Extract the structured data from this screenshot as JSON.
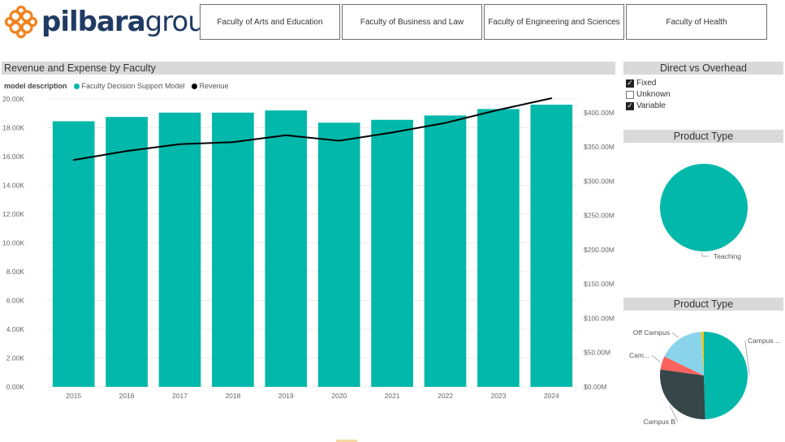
{
  "brand": {
    "name_bold": "pilbara",
    "name_light": "group",
    "colors": {
      "navy": "#1f3b63",
      "orange": "#f0821e"
    }
  },
  "faculties": [
    "Faculty of Arts and Education",
    "Faculty of Business and Law",
    "Faculty of Engineering and Sciences",
    "Faculty of Health"
  ],
  "main": {
    "title": "Revenue and Expense by Faculty",
    "legend": {
      "title": "model description",
      "items": [
        {
          "label": "Faculty Decision Support Model",
          "color": "#01b8aa"
        },
        {
          "label": "Revenue",
          "color": "#000000"
        }
      ]
    }
  },
  "chart_data": [
    {
      "type": "bar",
      "categories": [
        "2015",
        "2016",
        "2017",
        "2018",
        "2019",
        "2020",
        "2021",
        "2022",
        "2023",
        "2024"
      ],
      "series": [
        {
          "name": "Faculty Decision Support Model",
          "axis": "left",
          "kind": "bar",
          "color": "#01b8aa",
          "values": [
            18450,
            18750,
            19050,
            19050,
            19200,
            18350,
            18550,
            18850,
            19300,
            19600
          ]
        },
        {
          "name": "Revenue",
          "axis": "right",
          "kind": "line",
          "color": "#000000",
          "values": [
            331,
            344,
            354,
            357,
            367,
            359,
            371,
            385,
            404,
            421
          ]
        }
      ],
      "yticks_left": [
        "0.00K",
        "2.00K",
        "4.00K",
        "6.00K",
        "8.00K",
        "10.00K",
        "12.00K",
        "14.00K",
        "16.00K",
        "18.00K",
        "20.00K"
      ],
      "yticks_right": [
        "$0.00M",
        "$50.00M",
        "$100.00M",
        "$150.00M",
        "$200.00M",
        "$250.00M",
        "$300.00M",
        "$350.00M",
        "$400.00M"
      ],
      "ylim_left": [
        0,
        20000
      ],
      "ylim_right": [
        0,
        420
      ],
      "grid": true
    },
    {
      "type": "pie",
      "title": "Product Type",
      "labels": [
        "Teaching"
      ],
      "values": [
        100
      ],
      "colors": [
        "#01b8aa"
      ]
    },
    {
      "type": "pie",
      "title": "Product Type",
      "labels": [
        "Campus ...",
        "Campus B",
        "Cam...",
        "Off Campus"
      ],
      "values": [
        50,
        28,
        5,
        17
      ],
      "colors": [
        "#01b8aa",
        "#374649",
        "#fd625e",
        "#8ad4eb"
      ],
      "extra_sliver": {
        "value": 1,
        "color": "#f2c80f"
      }
    }
  ],
  "direct": {
    "title": "Direct vs Overhead",
    "options": [
      {
        "label": "Fixed",
        "checked": true
      },
      {
        "label": "Unknown",
        "checked": false
      },
      {
        "label": "Variable",
        "checked": true
      }
    ]
  },
  "product1": {
    "title": "Product Type"
  },
  "product2": {
    "title": "Product Type"
  }
}
